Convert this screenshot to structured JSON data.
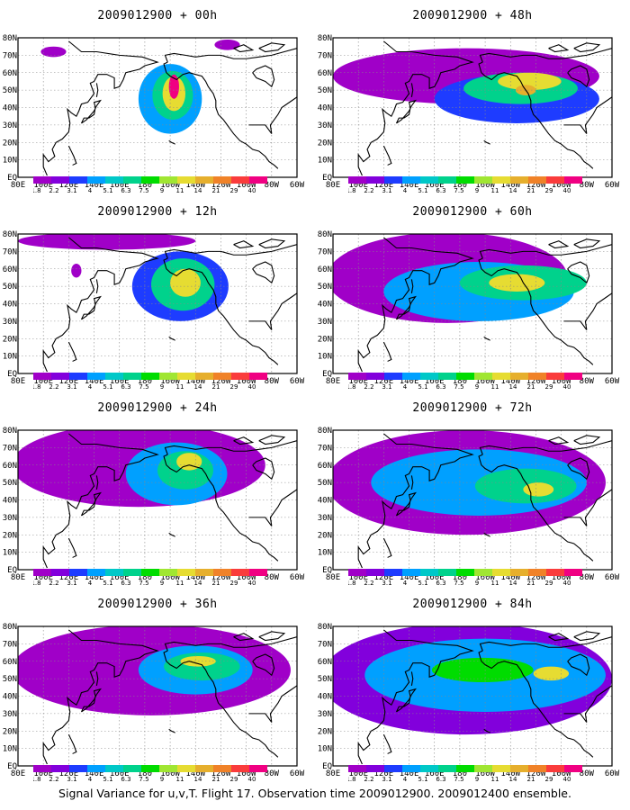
{
  "footer": "Signal Variance for u,v,T. Flight 17. Observation time 2009012900. 2009012400 ensemble.",
  "chart_data": {
    "type": "heatmap",
    "description_units": "signal variance",
    "y_tick_labels": [
      "EQ",
      "10N",
      "20N",
      "30N",
      "40N",
      "50N",
      "60N",
      "70N",
      "80N"
    ],
    "x_tick_labels": [
      "80E",
      "100E",
      "120E",
      "140E",
      "160E",
      "180",
      "160W",
      "140W",
      "120W",
      "100W",
      "80W",
      "60W"
    ],
    "colorbar": {
      "levels": [
        "1.8",
        "2.2",
        "3.1",
        "4",
        "5.1",
        "6.3",
        "7.5",
        "9",
        "11",
        "14",
        "21",
        "29",
        "40"
      ],
      "colors": [
        "#a000c8",
        "#8200dc",
        "#1e3cff",
        "#00a0ff",
        "#00c8c8",
        "#00d28c",
        "#00dc00",
        "#a0e632",
        "#e6dc32",
        "#e6af2d",
        "#f08228",
        "#fa3c3c",
        "#f00082"
      ]
    },
    "panels": [
      {
        "title": "2009012900 + 00h",
        "lead_hours": 0,
        "blobs": [
          {
            "lon": 200,
            "lat": 45,
            "rx": 25,
            "ry": 20,
            "level": 3
          },
          {
            "lon": 202,
            "lat": 47,
            "rx": 16,
            "ry": 14,
            "level": 5
          },
          {
            "lon": 203,
            "lat": 48,
            "rx": 9,
            "ry": 10,
            "level": 8
          },
          {
            "lon": 203,
            "lat": 52,
            "rx": 4,
            "ry": 7,
            "level": 12
          },
          {
            "lon": 108,
            "lat": 72,
            "rx": 10,
            "ry": 3,
            "level": 0
          },
          {
            "lon": 245,
            "lat": 76,
            "rx": 10,
            "ry": 3,
            "level": 0
          }
        ]
      },
      {
        "title": "2009012900 + 48h",
        "lead_hours": 48,
        "blobs": [
          {
            "lon": 185,
            "lat": 58,
            "rx": 105,
            "ry": 16,
            "level": 0
          },
          {
            "lon": 225,
            "lat": 45,
            "rx": 65,
            "ry": 14,
            "level": 2
          },
          {
            "lon": 228,
            "lat": 51,
            "rx": 45,
            "ry": 9,
            "level": 5
          },
          {
            "lon": 235,
            "lat": 55,
            "rx": 25,
            "ry": 5,
            "level": 8
          },
          {
            "lon": 232,
            "lat": 50,
            "rx": 8,
            "ry": 3,
            "level": 9
          }
        ]
      },
      {
        "title": "2009012900 + 12h",
        "lead_hours": 12,
        "blobs": [
          {
            "lon": 150,
            "lat": 76,
            "rx": 70,
            "ry": 5,
            "level": 0
          },
          {
            "lon": 208,
            "lat": 50,
            "rx": 38,
            "ry": 20,
            "level": 2
          },
          {
            "lon": 210,
            "lat": 51,
            "rx": 25,
            "ry": 15,
            "level": 5
          },
          {
            "lon": 212,
            "lat": 52,
            "rx": 12,
            "ry": 8,
            "level": 8
          },
          {
            "lon": 126,
            "lat": 59,
            "rx": 4,
            "ry": 4,
            "level": 0
          }
        ]
      },
      {
        "title": "2009012900 + 60h",
        "lead_hours": 60,
        "blobs": [
          {
            "lon": 170,
            "lat": 55,
            "rx": 95,
            "ry": 26,
            "level": 0
          },
          {
            "lon": 195,
            "lat": 47,
            "rx": 75,
            "ry": 17,
            "level": 3
          },
          {
            "lon": 230,
            "lat": 52,
            "rx": 50,
            "ry": 10,
            "level": 5
          },
          {
            "lon": 225,
            "lat": 52,
            "rx": 22,
            "ry": 5,
            "level": 8
          }
        ]
      },
      {
        "title": "2009012900 + 24h",
        "lead_hours": 24,
        "blobs": [
          {
            "lon": 175,
            "lat": 60,
            "rx": 100,
            "ry": 24,
            "level": 0
          },
          {
            "lon": 205,
            "lat": 55,
            "rx": 40,
            "ry": 18,
            "level": 3
          },
          {
            "lon": 212,
            "lat": 57,
            "rx": 22,
            "ry": 11,
            "level": 5
          },
          {
            "lon": 215,
            "lat": 62,
            "rx": 10,
            "ry": 5,
            "level": 8
          }
        ]
      },
      {
        "title": "2009012900 + 72h",
        "lead_hours": 72,
        "blobs": [
          {
            "lon": 185,
            "lat": 50,
            "rx": 110,
            "ry": 30,
            "level": 0
          },
          {
            "lon": 195,
            "lat": 50,
            "rx": 85,
            "ry": 19,
            "level": 3
          },
          {
            "lon": 232,
            "lat": 48,
            "rx": 40,
            "ry": 10,
            "level": 5
          },
          {
            "lon": 242,
            "lat": 46,
            "rx": 12,
            "ry": 4,
            "level": 8
          }
        ]
      },
      {
        "title": "2009012900 + 36h",
        "lead_hours": 36,
        "blobs": [
          {
            "lon": 185,
            "lat": 55,
            "rx": 110,
            "ry": 26,
            "level": 0
          },
          {
            "lon": 220,
            "lat": 55,
            "rx": 45,
            "ry": 14,
            "level": 3
          },
          {
            "lon": 225,
            "lat": 57,
            "rx": 30,
            "ry": 8,
            "level": 5
          },
          {
            "lon": 222,
            "lat": 60,
            "rx": 14,
            "ry": 3,
            "level": 8
          }
        ]
      },
      {
        "title": "2009012900 + 84h",
        "lead_hours": 84,
        "blobs": [
          {
            "lon": 185,
            "lat": 50,
            "rx": 115,
            "ry": 32,
            "level": 1
          },
          {
            "lon": 200,
            "lat": 52,
            "rx": 95,
            "ry": 21,
            "level": 3
          },
          {
            "lon": 198,
            "lat": 55,
            "rx": 40,
            "ry": 7,
            "level": 6
          },
          {
            "lon": 252,
            "lat": 53,
            "rx": 14,
            "ry": 4,
            "level": 8
          }
        ]
      }
    ]
  }
}
